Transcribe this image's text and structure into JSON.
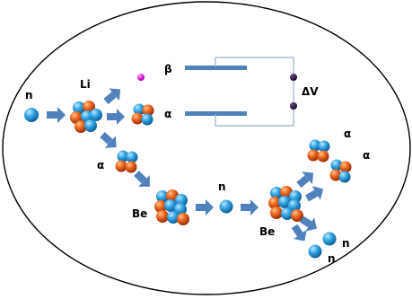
{
  "labels": {
    "n_in": "n",
    "li": "Li",
    "beta": "β",
    "alpha_top": "α",
    "alpha_mid": "α",
    "delta_v": "ΔV",
    "be_left": "Be",
    "n_mid": "n",
    "be_right": "Be",
    "alpha_out_1": "α",
    "alpha_out_2": "α",
    "n_out_1": "n",
    "n_out_2": "n"
  },
  "colors": {
    "proton": "#e8622a",
    "neutron": "#2f9fdd",
    "arrow": "#4f81bd",
    "plate": "#4f81bd",
    "beta_particle": "#e020e0",
    "terminal": "#1a0a2e",
    "ellipse_stroke": "#000000"
  }
}
